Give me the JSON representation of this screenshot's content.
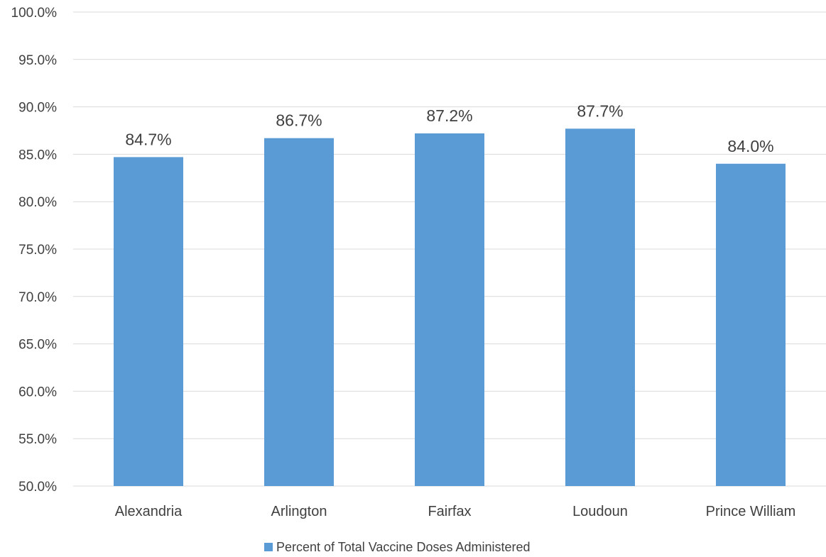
{
  "chart_data": {
    "type": "bar",
    "categories": [
      "Alexandria",
      "Arlington",
      "Fairfax",
      "Loudoun",
      "Prince William"
    ],
    "series": [
      {
        "name": "Percent of Total Vaccine Doses Administered",
        "values": [
          84.7,
          86.7,
          87.2,
          87.7,
          84.0
        ],
        "labels": [
          "84.7%",
          "86.7%",
          "87.2%",
          "87.7%",
          "84.0%"
        ],
        "color": "#5b9bd5"
      }
    ],
    "y_ticks": [
      "50.0%",
      "55.0%",
      "60.0%",
      "65.0%",
      "70.0%",
      "75.0%",
      "80.0%",
      "85.0%",
      "90.0%",
      "95.0%",
      "100.0%"
    ],
    "ylim": [
      50,
      100
    ],
    "ytick_step": 5,
    "grid": true,
    "legend": "bottom-center",
    "title": "",
    "xlabel": "",
    "ylabel": ""
  }
}
